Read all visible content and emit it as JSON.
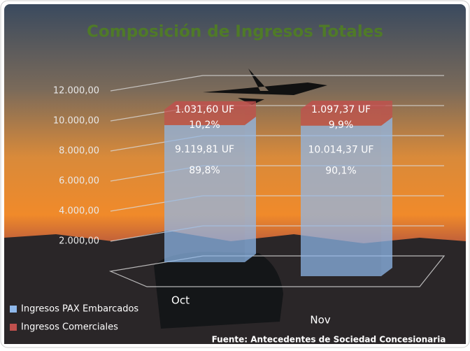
{
  "chart_data": {
    "type": "bar3d_stacked",
    "title": "Composición de Ingresos Totales",
    "source": "Fuente: Antecedentes de Sociedad Concesionaria",
    "categories": [
      "Oct",
      "Nov"
    ],
    "series": [
      {
        "name": "Ingresos PAX Embarcados",
        "color": "#8fb8ea",
        "values": [
          9119.81,
          10014.37
        ],
        "value_labels": [
          "9.119,81 UF",
          "10.014,37 UF"
        ],
        "share_labels": [
          "89,8%",
          "90,1%"
        ]
      },
      {
        "name": "Ingresos Comerciales",
        "color": "#c0504d",
        "values": [
          1031.6,
          1097.37
        ],
        "value_labels": [
          "1.031,60 UF",
          "1.097,37 UF"
        ],
        "share_labels": [
          "10,2%",
          "9,9%"
        ]
      }
    ],
    "ylim": [
      0,
      14000
    ],
    "yticks": [
      {
        "value": 2000,
        "label": "2.000,00"
      },
      {
        "value": 4000,
        "label": "4.000,00"
      },
      {
        "value": 6000,
        "label": "6.000,00"
      },
      {
        "value": 8000,
        "label": "8.000,00"
      },
      {
        "value": 10000,
        "label": "10.000,00"
      },
      {
        "value": 12000,
        "label": "12.000,00"
      }
    ],
    "grid": true,
    "legend": "bottom-left"
  }
}
